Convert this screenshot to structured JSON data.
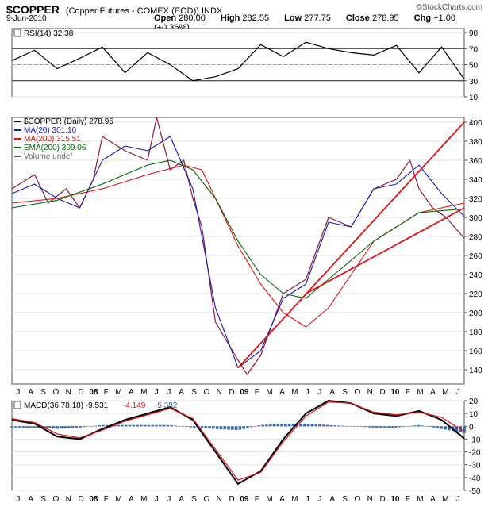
{
  "header": {
    "symbol": "$COPPER",
    "description": "(Copper Futures - COMEX (EOD)) INDX",
    "brand": "©StockCharts.com",
    "date": "9-Jun-2010",
    "open_label": "Open",
    "open": "280.00",
    "high_label": "High",
    "high": "282.55",
    "low_label": "Low",
    "low": "277.75",
    "close_label": "Close",
    "close": "278.95",
    "chg_label": "Chg",
    "chg": "+1.00 (+0.36%)"
  },
  "chart_data": [
    {
      "type": "line",
      "panel": "rsi",
      "title": "RSI(14) 32.38",
      "ylim": [
        10,
        95
      ],
      "yticks": [
        10,
        30,
        50,
        70,
        90
      ],
      "reference_lines": [
        30,
        50,
        70
      ],
      "x": [
        0,
        0.05,
        0.1,
        0.15,
        0.2,
        0.25,
        0.3,
        0.35,
        0.4,
        0.45,
        0.5,
        0.55,
        0.6,
        0.65,
        0.7,
        0.75,
        0.8,
        0.85,
        0.9,
        0.95,
        1.0
      ],
      "values": [
        55,
        68,
        45,
        58,
        72,
        40,
        65,
        50,
        30,
        35,
        45,
        75,
        60,
        78,
        70,
        65,
        62,
        74,
        40,
        72,
        32
      ]
    },
    {
      "type": "line",
      "panel": "price",
      "ylim": [
        125,
        405
      ],
      "yticks": [
        140,
        160,
        180,
        200,
        220,
        240,
        260,
        280,
        300,
        320,
        340,
        360,
        380,
        400
      ],
      "x_labels": [
        "J",
        "A",
        "S",
        "O",
        "N",
        "D",
        "08",
        "F",
        "M",
        "A",
        "M",
        "J",
        "J",
        "A",
        "S",
        "O",
        "N",
        "D",
        "09",
        "F",
        "M",
        "A",
        "M",
        "J",
        "J",
        "A",
        "S",
        "O",
        "N",
        "D",
        "10",
        "F",
        "M",
        "A",
        "M",
        "J"
      ],
      "legend": [
        "$COPPER (Daily) 278.95",
        "MA(20) 301.10",
        "MA(200) 315.51",
        "EMA(200) 309.06",
        "Volume undef"
      ],
      "series": [
        {
          "name": "$COPPER (Daily) 278.95",
          "color": "#8b1a3a",
          "x": [
            0,
            0.05,
            0.08,
            0.12,
            0.15,
            0.18,
            0.2,
            0.25,
            0.3,
            0.32,
            0.35,
            0.38,
            0.4,
            0.42,
            0.45,
            0.5,
            0.52,
            0.55,
            0.6,
            0.65,
            0.7,
            0.75,
            0.8,
            0.85,
            0.88,
            0.9,
            0.93,
            0.96,
            1.0
          ],
          "values": [
            330,
            345,
            315,
            330,
            310,
            340,
            385,
            370,
            360,
            405,
            350,
            360,
            320,
            290,
            190,
            150,
            135,
            155,
            220,
            235,
            300,
            290,
            330,
            340,
            360,
            330,
            310,
            300,
            278
          ]
        },
        {
          "name": "MA(20) 301.10",
          "color": "#1a1aaa",
          "x": [
            0,
            0.05,
            0.1,
            0.15,
            0.2,
            0.25,
            0.3,
            0.35,
            0.4,
            0.45,
            0.5,
            0.55,
            0.6,
            0.65,
            0.7,
            0.75,
            0.8,
            0.85,
            0.9,
            0.95,
            1.0
          ],
          "values": [
            325,
            335,
            320,
            310,
            360,
            375,
            370,
            385,
            330,
            205,
            142,
            160,
            215,
            230,
            295,
            290,
            330,
            335,
            355,
            325,
            301
          ]
        },
        {
          "name": "MA(200) 315.51",
          "color": "#dd1111",
          "x": [
            0,
            0.1,
            0.2,
            0.3,
            0.38,
            0.42,
            0.45,
            0.5,
            0.55,
            0.6,
            0.65,
            0.7,
            0.75,
            0.8,
            0.85,
            0.9,
            1.0
          ],
          "values": [
            315,
            320,
            330,
            345,
            355,
            350,
            320,
            270,
            230,
            200,
            185,
            205,
            240,
            275,
            290,
            305,
            315
          ]
        },
        {
          "name": "EMA(200) 309.06",
          "color": "#006600",
          "x": [
            0,
            0.1,
            0.2,
            0.3,
            0.35,
            0.4,
            0.45,
            0.5,
            0.55,
            0.6,
            0.65,
            0.7,
            0.75,
            0.8,
            0.85,
            0.9,
            1.0
          ],
          "values": [
            310,
            318,
            335,
            355,
            360,
            350,
            320,
            275,
            240,
            220,
            215,
            235,
            255,
            275,
            290,
            305,
            309
          ]
        },
        {
          "name": "Trendline 1",
          "color": "#dd1111",
          "x": [
            0.5,
            1.0
          ],
          "values": [
            142,
            400
          ]
        },
        {
          "name": "Trendline 2",
          "color": "#dd1111",
          "x": [
            0.65,
            1.0
          ],
          "values": [
            220,
            310
          ]
        }
      ]
    },
    {
      "type": "line",
      "panel": "macd",
      "title": "MACD(36,78,18)",
      "legend": [
        "MACD(36,78,18) -9.531",
        "-4.149",
        "-5.382"
      ],
      "legend_values": [
        "-9.531",
        "-4.149",
        "-5.382"
      ],
      "ylim": [
        -50,
        20
      ],
      "yticks": [
        -50,
        -40,
        -30,
        -20,
        -10,
        0,
        10,
        20
      ],
      "x_labels": [
        "J",
        "A",
        "S",
        "O",
        "N",
        "D",
        "08",
        "F",
        "M",
        "A",
        "M",
        "J",
        "J",
        "A",
        "S",
        "O",
        "N",
        "D",
        "09",
        "F",
        "M",
        "A",
        "M",
        "J",
        "J",
        "A",
        "S",
        "O",
        "N",
        "D",
        "10",
        "F",
        "M",
        "A",
        "M",
        "J"
      ],
      "series": [
        {
          "name": "MACD",
          "color": "#000000",
          "x": [
            0,
            0.05,
            0.1,
            0.15,
            0.2,
            0.25,
            0.3,
            0.35,
            0.4,
            0.45,
            0.5,
            0.55,
            0.6,
            0.65,
            0.7,
            0.75,
            0.8,
            0.85,
            0.9,
            0.95,
            1.0
          ],
          "values": [
            5,
            2,
            -8,
            -10,
            -2,
            5,
            10,
            15,
            5,
            -20,
            -45,
            -35,
            -10,
            10,
            20,
            18,
            10,
            8,
            12,
            5,
            -9.531
          ]
        },
        {
          "name": "Signal",
          "color": "#dd1111",
          "x": [
            0,
            0.05,
            0.1,
            0.15,
            0.2,
            0.25,
            0.3,
            0.35,
            0.4,
            0.45,
            0.5,
            0.55,
            0.6,
            0.65,
            0.7,
            0.75,
            0.8,
            0.85,
            0.9,
            0.95,
            1.0
          ],
          "values": [
            6,
            3,
            -6,
            -9,
            -3,
            4,
            9,
            14,
            6,
            -18,
            -42,
            -36,
            -12,
            8,
            19,
            18,
            11,
            9,
            11,
            7,
            -4.149
          ]
        },
        {
          "name": "Histogram",
          "color": "#3366aa",
          "x": [
            0,
            0.05,
            0.1,
            0.15,
            0.2,
            0.25,
            0.3,
            0.35,
            0.4,
            0.45,
            0.5,
            0.55,
            0.6,
            0.65,
            0.7,
            0.75,
            0.8,
            0.85,
            0.9,
            0.95,
            1.0
          ],
          "values": [
            -1,
            -1,
            -2,
            -1,
            1,
            1,
            1,
            1,
            -1,
            -2,
            -3,
            1,
            2,
            2,
            1,
            0,
            -1,
            -1,
            1,
            -2,
            -5.382
          ]
        }
      ]
    }
  ]
}
